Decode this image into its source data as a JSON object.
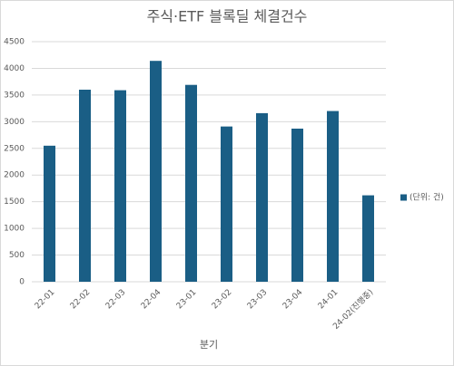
{
  "chart_data": {
    "type": "bar",
    "title": "주식·ETF 블록딜 체결건수",
    "x_label": "분기",
    "categories": [
      "22-01",
      "22-02",
      "22-03",
      "22-04",
      "23-01",
      "23-02",
      "23-03",
      "23-04",
      "24-01",
      "24-02(진행중)"
    ],
    "series": [
      {
        "name": "(단위: 건)",
        "color": "#1a5e85",
        "values": [
          2550,
          3600,
          3590,
          4140,
          3690,
          2910,
          3160,
          2870,
          3200,
          1620
        ]
      }
    ],
    "ylim": [
      0,
      4500
    ],
    "yticks": [
      0,
      500,
      1000,
      1500,
      2000,
      2500,
      3000,
      3500,
      4000,
      4500
    ],
    "grid": true,
    "legend": "right"
  }
}
